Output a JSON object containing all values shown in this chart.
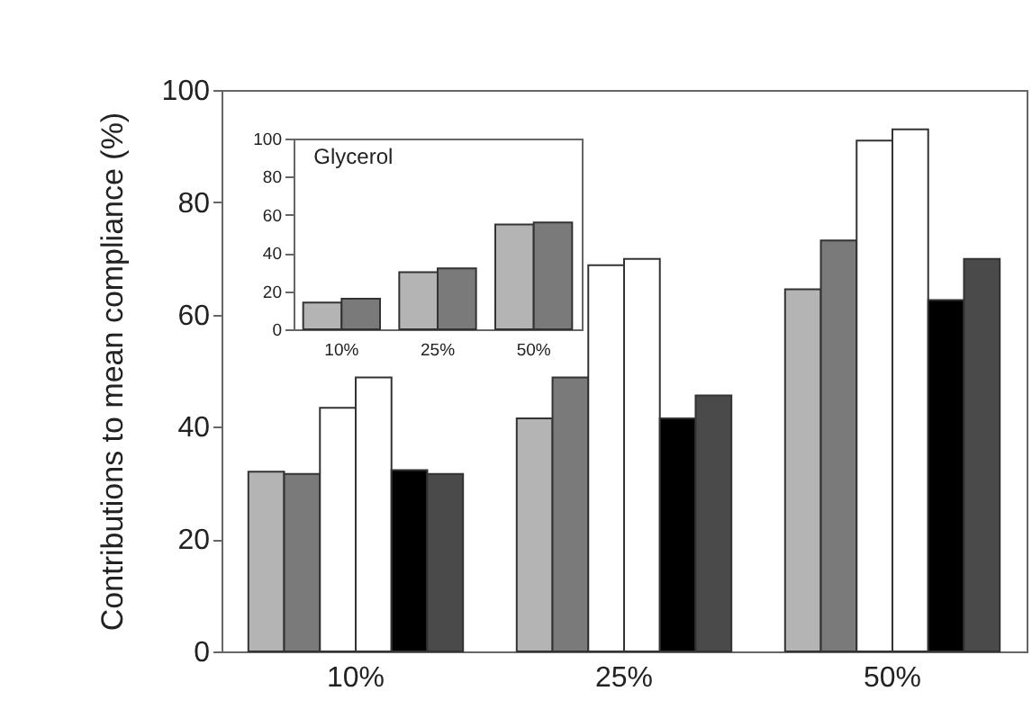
{
  "chart_data": [
    {
      "type": "bar",
      "ylabel": "Contributions to mean compliance (%)",
      "categories": [
        "10%",
        "25%",
        "50%"
      ],
      "series": [
        {
          "color": "#b4b4b4",
          "values": [
            32,
            41.5,
            64.5
          ]
        },
        {
          "color": "#7a7a7a",
          "values": [
            31.6,
            48.8,
            73.2
          ]
        },
        {
          "color": "#ffffff",
          "values": [
            43.4,
            68.8,
            91
          ]
        },
        {
          "color": "#ffffff",
          "values": [
            48.8,
            69.9,
            93
          ]
        },
        {
          "color": "#000000",
          "values": [
            32.3,
            41.5,
            62.6
          ]
        },
        {
          "color": "#4a4a4a",
          "values": [
            31.6,
            45.6,
            69.9
          ]
        }
      ],
      "ylim": [
        0,
        100
      ],
      "yticks": [
        0,
        20,
        40,
        60,
        80,
        100
      ],
      "grid": false,
      "legend": false
    },
    {
      "type": "bar",
      "title": "Glycerol",
      "categories": [
        "10%",
        "25%",
        "50%"
      ],
      "series": [
        {
          "color": "#b4b4b4",
          "values": [
            14,
            30,
            55
          ]
        },
        {
          "color": "#7a7a7a",
          "values": [
            16,
            32,
            56
          ]
        }
      ],
      "ylim": [
        0,
        100
      ],
      "yticks": [
        0,
        20,
        40,
        60,
        80,
        100
      ],
      "grid": false,
      "legend": false
    }
  ]
}
